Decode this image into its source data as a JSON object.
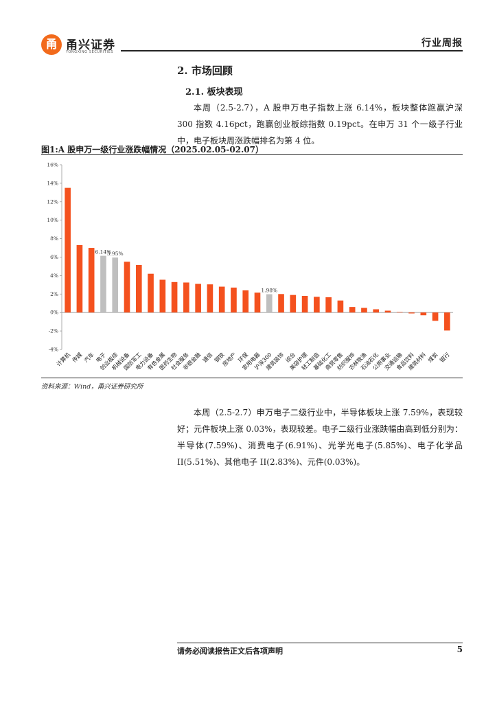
{
  "header": {
    "logo_mark": "甬",
    "logo_name": "甬兴证券",
    "logo_sub": "YONGXING SECURITIES",
    "title": "行业周报"
  },
  "section": {
    "heading": "2. 市场回顾",
    "subheading": "2.1. 板块表现",
    "paragraph1": "本周（2.5-2.7），A 股申万电子指数上涨 6.14%，板块整体跑赢沪深 300 指数 4.16pct，跑赢创业板综指数 0.19pct。在申万 31 个一级子行业中，电子板块周涨跌幅排名为第 4 位。",
    "paragraph2": "本周（2.5-2.7）申万电子二级行业中，半导体板块上涨 7.59%，表现较好；元件板块上涨 0.03%，表现较差。电子二级行业涨跌幅由高到低分别为：半导体(7.59%)、消费电子(6.91%)、光学光电子(5.85%)、电子化学品 II(5.51%)、其他电子 II(2.83%)、元件(0.03%)。"
  },
  "figure": {
    "title": "图1:A 股申万一级行业涨跌幅情况（2025.02.05-02.07）",
    "source": "资料来源：Wind，甬兴证券研究所"
  },
  "chart_data": {
    "type": "bar",
    "categories": [
      "计算机",
      "传媒",
      "汽车",
      "电子",
      "创业板综",
      "机械设备",
      "国防军工",
      "电力设备",
      "有色金属",
      "医药生物",
      "社会服务",
      "非银金融",
      "通信",
      "钢铁",
      "房地产",
      "环保",
      "家用电器",
      "沪深300",
      "建筑装饰",
      "综合",
      "美容护理",
      "轻工制造",
      "基础化工",
      "商贸零售",
      "纺织服饰",
      "农林牧渔",
      "石油石化",
      "公用事业",
      "交通运输",
      "食品饮料",
      "建筑材料",
      "煤炭",
      "银行"
    ],
    "values": [
      13.5,
      7.3,
      7.0,
      6.14,
      5.95,
      5.5,
      5.15,
      4.2,
      3.55,
      3.3,
      3.25,
      3.1,
      3.05,
      2.8,
      2.7,
      2.4,
      2.15,
      1.98,
      2.0,
      1.9,
      1.8,
      1.7,
      1.65,
      1.3,
      0.6,
      0.5,
      0.35,
      0.2,
      0.05,
      -0.1,
      -0.3,
      -0.9,
      -1.95
    ],
    "highlight": [
      "电子",
      "创业板综",
      "沪深300"
    ],
    "data_labels": {
      "电子": "6.14%",
      "创业板综": "5.95%",
      "沪深300": "1.98%"
    },
    "y_ticks": [
      "16%",
      "14%",
      "12%",
      "10%",
      "8%",
      "6%",
      "4%",
      "2%",
      "0%",
      "-2%",
      "-4%"
    ],
    "ylim": [
      -4,
      16
    ],
    "colors": {
      "bar": "#f4511e",
      "highlight": "#bfbfbf"
    },
    "grid": false,
    "legend": "none"
  },
  "footer": {
    "disclaimer": "请务必阅读报告正文后各项声明",
    "page": "5"
  }
}
